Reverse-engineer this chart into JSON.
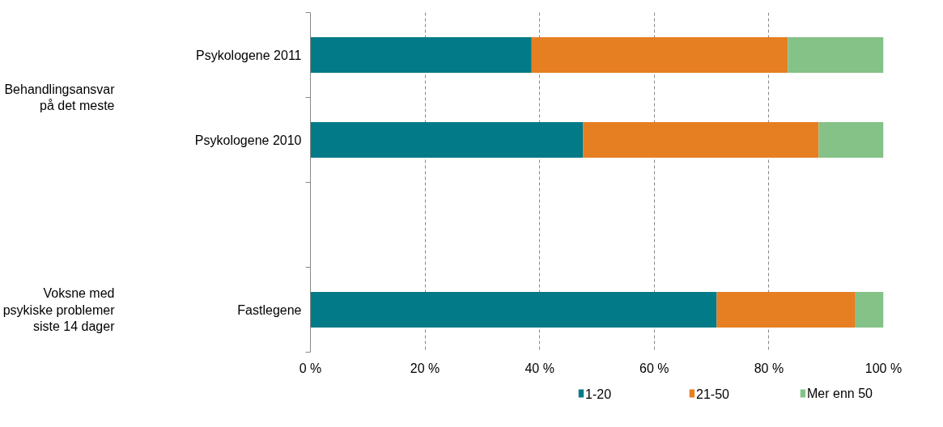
{
  "chart_data": {
    "type": "bar",
    "orientation": "horizontal",
    "stacked": true,
    "categories": [
      "Psykologene 2011",
      "Psykologene 2010",
      null,
      "Fastlegene"
    ],
    "series": [
      {
        "name": "1-20",
        "color": "#037a87",
        "values": [
          38.6,
          47.6,
          null,
          70.9
        ]
      },
      {
        "name": "21-50",
        "color": "#e67e22",
        "values": [
          44.7,
          41.1,
          null,
          24.2
        ]
      },
      {
        "name": "Mer enn 50",
        "color": "#84c287",
        "values": [
          16.7,
          11.3,
          null,
          4.9
        ]
      }
    ],
    "xlim": [
      0,
      100
    ],
    "xticks": [
      {
        "value": 0,
        "label": "0 %"
      },
      {
        "value": 20,
        "label": "20 %"
      },
      {
        "value": 40,
        "label": "40 %"
      },
      {
        "value": 60,
        "label": "60 %"
      },
      {
        "value": 80,
        "label": "80 %"
      },
      {
        "value": 100,
        "label": "100 %"
      }
    ],
    "grid": "x",
    "legend": "bottom",
    "annotations": [
      "Behandlingsansvar på det meste",
      "Voksne med psykiske problemer siste 14 dager"
    ]
  }
}
